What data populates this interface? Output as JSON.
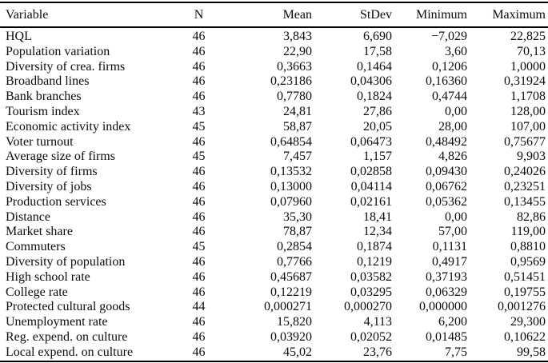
{
  "table": {
    "columns": [
      {
        "label": "Variable"
      },
      {
        "label": "N"
      },
      {
        "label": "Mean"
      },
      {
        "label": "StDev"
      },
      {
        "label": "Minimum"
      },
      {
        "label": "Maximum"
      }
    ],
    "rows": [
      [
        "HQL",
        "46",
        "3,843",
        "6,690",
        "−7,029",
        "22,825"
      ],
      [
        "Population variation",
        "46",
        "22,90",
        "17,58",
        "3,60",
        "70,13"
      ],
      [
        "Diversity of crea. firms",
        "46",
        "0,3663",
        "0,1464",
        "0,1206",
        "1,0000"
      ],
      [
        "Broadband lines",
        "46",
        "0,23186",
        "0,04306",
        "0,16360",
        "0,31924"
      ],
      [
        "Bank branches",
        "46",
        "0,7780",
        "0,1824",
        "0,4744",
        "1,1708"
      ],
      [
        "Tourism index",
        "43",
        "24,81",
        "27,86",
        "0,00",
        "128,00"
      ],
      [
        "Economic activity index",
        "45",
        "58,87",
        "20,05",
        "28,00",
        "107,00"
      ],
      [
        "Voter turnout",
        "46",
        "0,64854",
        "0,06473",
        "0,48492",
        "0,75677"
      ],
      [
        "Average size of firms",
        "45",
        "7,457",
        "1,157",
        "4,826",
        "9,903"
      ],
      [
        "Diversity of firms",
        "46",
        "0,13532",
        "0,02858",
        "0,09430",
        "0,24026"
      ],
      [
        "Diversity of jobs",
        "46",
        "0,13000",
        "0,04114",
        "0,06762",
        "0,23251"
      ],
      [
        "Production services",
        "46",
        "0,07960",
        "0,02161",
        "0,05362",
        "0,13455"
      ],
      [
        "Distance",
        "46",
        "35,30",
        "18,41",
        "0,00",
        "82,86"
      ],
      [
        "Market share",
        "46",
        "78,87",
        "12,34",
        "57,00",
        "119,00"
      ],
      [
        "Commuters",
        "45",
        "0,2854",
        "0,1874",
        "0,1131",
        "0,8810"
      ],
      [
        "Diversity of population",
        "46",
        "0,7766",
        "0,1219",
        "0,4917",
        "0,9569"
      ],
      [
        "High school rate",
        "46",
        "0,45687",
        "0,03582",
        "0,37193",
        "0,51451"
      ],
      [
        "College rate",
        "46",
        "0,12219",
        "0,03295",
        "0,06329",
        "0,19755"
      ],
      [
        "Protected cultural goods",
        "44",
        "0,000271",
        "0,000270",
        "0,000000",
        "0,001276"
      ],
      [
        "Unemployment rate",
        "46",
        "15,820",
        "4,113",
        "6,200",
        "29,300"
      ],
      [
        "Reg. expend. on culture",
        "46",
        "0,03920",
        "0,02052",
        "0,01485",
        "0,10622"
      ],
      [
        "Local expend. on culture",
        "46",
        "45,02",
        "23,76",
        "7,75",
        "99,58"
      ]
    ]
  }
}
